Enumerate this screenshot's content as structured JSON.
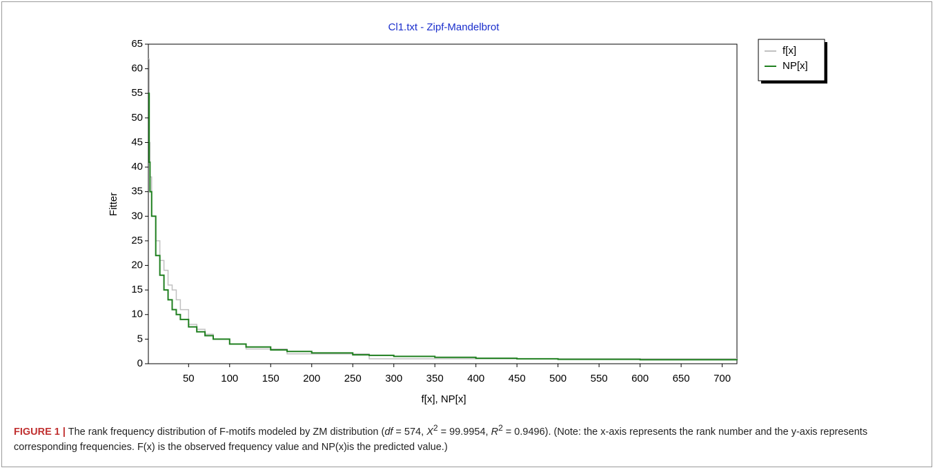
{
  "chart_data": {
    "type": "step-line",
    "title": "Cl1.txt  -  Zipf-Mandelbrot",
    "x_label": "f[x], NP[x]",
    "y_label": "Fitter",
    "x": [
      1,
      2,
      3,
      5,
      10,
      15,
      20,
      25,
      30,
      35,
      40,
      50,
      60,
      70,
      80,
      100,
      120,
      150,
      170,
      200,
      250,
      270,
      300,
      350,
      400,
      450,
      500,
      600,
      718
    ],
    "series": [
      {
        "name": "f[x]",
        "color": "#c0c0c0",
        "values": [
          62,
          45,
          38,
          30,
          25,
          21,
          19,
          16,
          15,
          13,
          11,
          8,
          7,
          6,
          5,
          4,
          3,
          3,
          2,
          2,
          2,
          1,
          1,
          1,
          1,
          1,
          1,
          1,
          1
        ]
      },
      {
        "name": "NP[x]",
        "color": "#1f7f1f",
        "values": [
          55,
          41,
          35,
          30,
          22,
          18,
          15,
          13,
          11,
          10,
          9,
          7.5,
          6.5,
          5.7,
          5,
          4,
          3.4,
          2.8,
          2.5,
          2.2,
          1.8,
          1.7,
          1.5,
          1.3,
          1.1,
          1,
          0.9,
          0.8,
          0.7
        ]
      }
    ],
    "xlim": [
      1,
      718
    ],
    "xticks": [
      50,
      100,
      150,
      200,
      250,
      300,
      350,
      400,
      450,
      500,
      550,
      600,
      650,
      700
    ],
    "ylim": [
      0,
      65
    ],
    "yticks": [
      0,
      5,
      10,
      15,
      20,
      25,
      30,
      35,
      40,
      45,
      50,
      55,
      60,
      65
    ],
    "legend": "outside-top-right"
  },
  "caption": {
    "label": "FIGURE 1 |",
    "parts": [
      "The rank frequency distribution of F-motifs modeled by ZM distribution (",
      "df",
      " = 574, ",
      "X",
      "2",
      " = 99.9954, ",
      "R",
      "2",
      " = 0.9496). (Note: the x-axis represents the rank number and the y-axis represents corresponding frequencies. F(x) is the observed frequency value and NP(x)is the predicted value.)"
    ]
  }
}
